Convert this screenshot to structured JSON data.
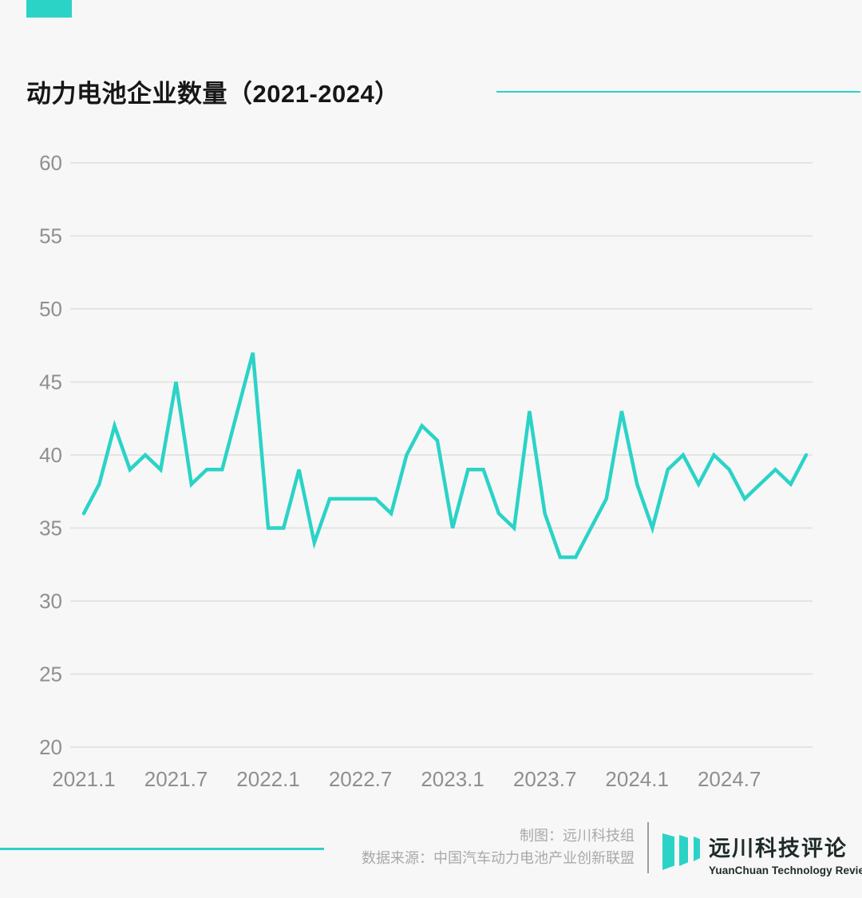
{
  "accent_color": "#2bd3c7",
  "title": {
    "text": "动力电池企业数量（2021-2024）"
  },
  "chart_data": {
    "type": "line",
    "title": "动力电池企业数量（2021-2024）",
    "series_name": "动力电池企业数量",
    "x": [
      "2021.1",
      "2021.2",
      "2021.3",
      "2021.4",
      "2021.5",
      "2021.6",
      "2021.7",
      "2021.8",
      "2021.9",
      "2021.10",
      "2021.11",
      "2021.12",
      "2022.1",
      "2022.2",
      "2022.3",
      "2022.4",
      "2022.5",
      "2022.6",
      "2022.7",
      "2022.8",
      "2022.9",
      "2022.10",
      "2022.11",
      "2022.12",
      "2023.1",
      "2023.2",
      "2023.3",
      "2023.4",
      "2023.5",
      "2023.6",
      "2023.7",
      "2023.8",
      "2023.9",
      "2023.10",
      "2023.11",
      "2023.12",
      "2024.1",
      "2024.2",
      "2024.3",
      "2024.4",
      "2024.5",
      "2024.6",
      "2024.7",
      "2024.8",
      "2024.9",
      "2024.10",
      "2024.11",
      "2024.12"
    ],
    "values": [
      36,
      38,
      42,
      39,
      40,
      39,
      45,
      38,
      39,
      39,
      43,
      47,
      35,
      35,
      39,
      34,
      37,
      37,
      37,
      37,
      36,
      40,
      42,
      41,
      35,
      39,
      39,
      36,
      35,
      43,
      36,
      33,
      33,
      35,
      37,
      43,
      38,
      35,
      39,
      40,
      38,
      40,
      39,
      37,
      38,
      39,
      38,
      40
    ],
    "ylim": [
      20,
      60
    ],
    "y_ticks": [
      60,
      55,
      50,
      45,
      40,
      35,
      30,
      25,
      20
    ],
    "x_tick_labels": [
      "2021.1",
      "2021.7",
      "2022.1",
      "2022.7",
      "2023.1",
      "2023.7",
      "2024.1",
      "2024.7"
    ],
    "x_tick_positions": [
      0,
      6,
      12,
      18,
      24,
      30,
      36,
      42
    ],
    "grid": true,
    "legend": false,
    "line_color": "#2bd3c7",
    "grid_color": "#e2e2e2",
    "axis_label_color": "#8f8f8f"
  },
  "footer": {
    "credit": "制图：远川科技组",
    "source": "数据来源：中国汽车动力电池产业创新联盟",
    "logo_cn": "远川科技评论",
    "logo_en": "YuanChuan Technology Review"
  }
}
